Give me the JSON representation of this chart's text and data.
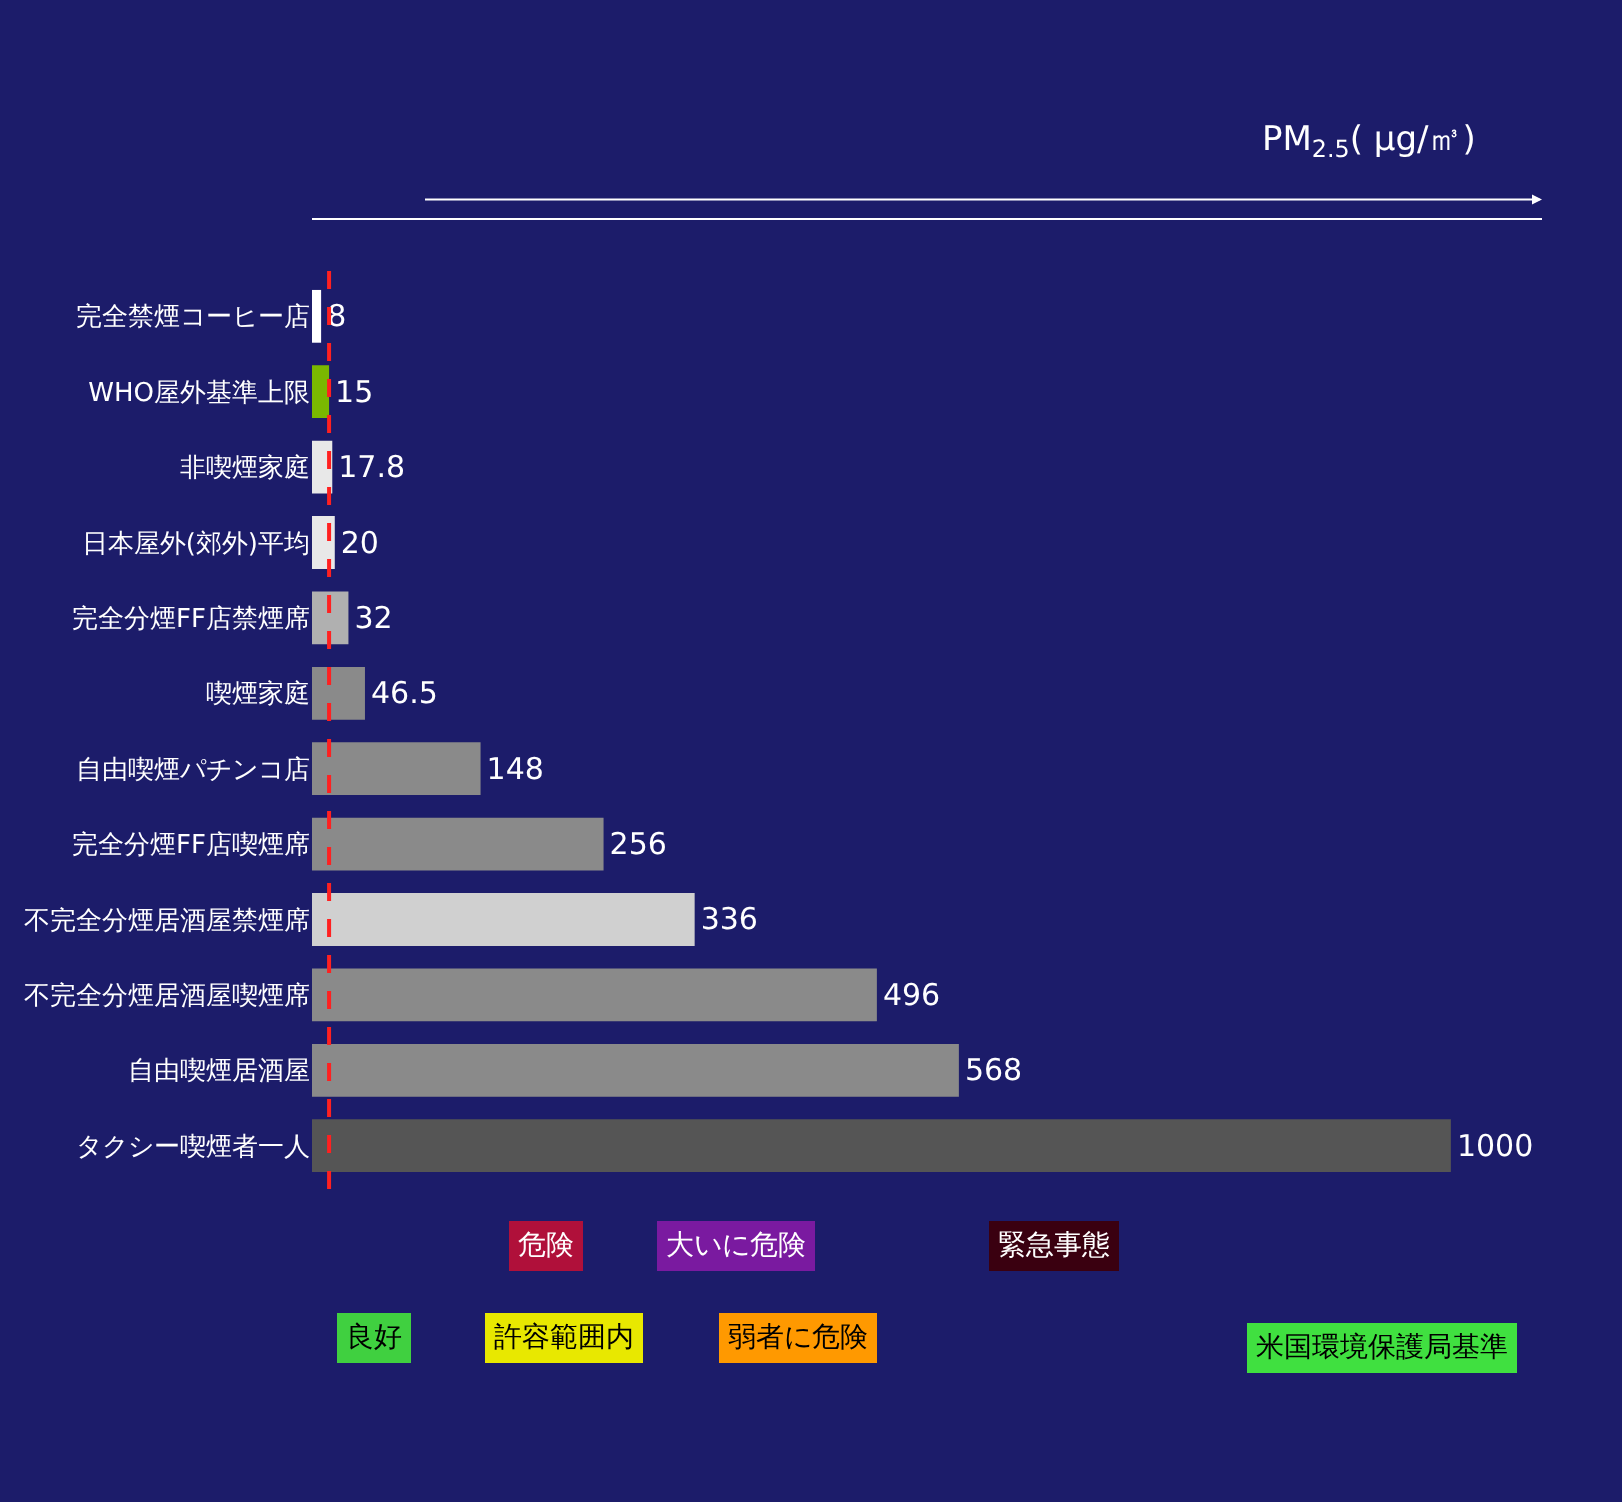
{
  "chart_data": {
    "type": "bar",
    "orientation": "horizontal",
    "xlabel": "PM$_{2.5}$( μg/㎥)",
    "categories": [
      "完全禁煙コーヒー店",
      "WHO屋外基準上限",
      "非喫煙家庭",
      "日本屋外(郊外)平均",
      "完全分煙FF店禁煙席",
      "喫煙家庭",
      "自由喫煙パチンコ店",
      "完全分煙FF店喫煙席",
      "不完全分煙居酒屋禁煙席",
      "不完全分煙居酒屋喫煙席",
      "自由喫煙居酒屋",
      "タクシー喫煙者一人"
    ],
    "values": [
      8,
      15,
      17.8,
      20,
      32,
      46.5,
      148,
      256,
      336,
      496,
      568,
      1000
    ],
    "colors": [
      "#ffffff",
      "#7ab800",
      "#e8e8e8",
      "#e8e8e8",
      "#b0b0b0",
      "#8a8a8a",
      "#8a8a8a",
      "#8a8a8a",
      "#d0d0d0",
      "#8a8a8a",
      "#8a8a8a",
      "#555555"
    ],
    "data_labels": true,
    "tick_labels": "y",
    "grid": false,
    "ref_lines": [
      {
        "axis": "x",
        "value": 15,
        "color": "#ff2020",
        "line_style": "dashed"
      }
    ],
    "annotations": [
      "危険",
      "大いに危険",
      "緊急事態",
      "良好",
      "許容範囲内",
      "弱者に危険",
      "米国環境保護局基準"
    ]
  }
}
